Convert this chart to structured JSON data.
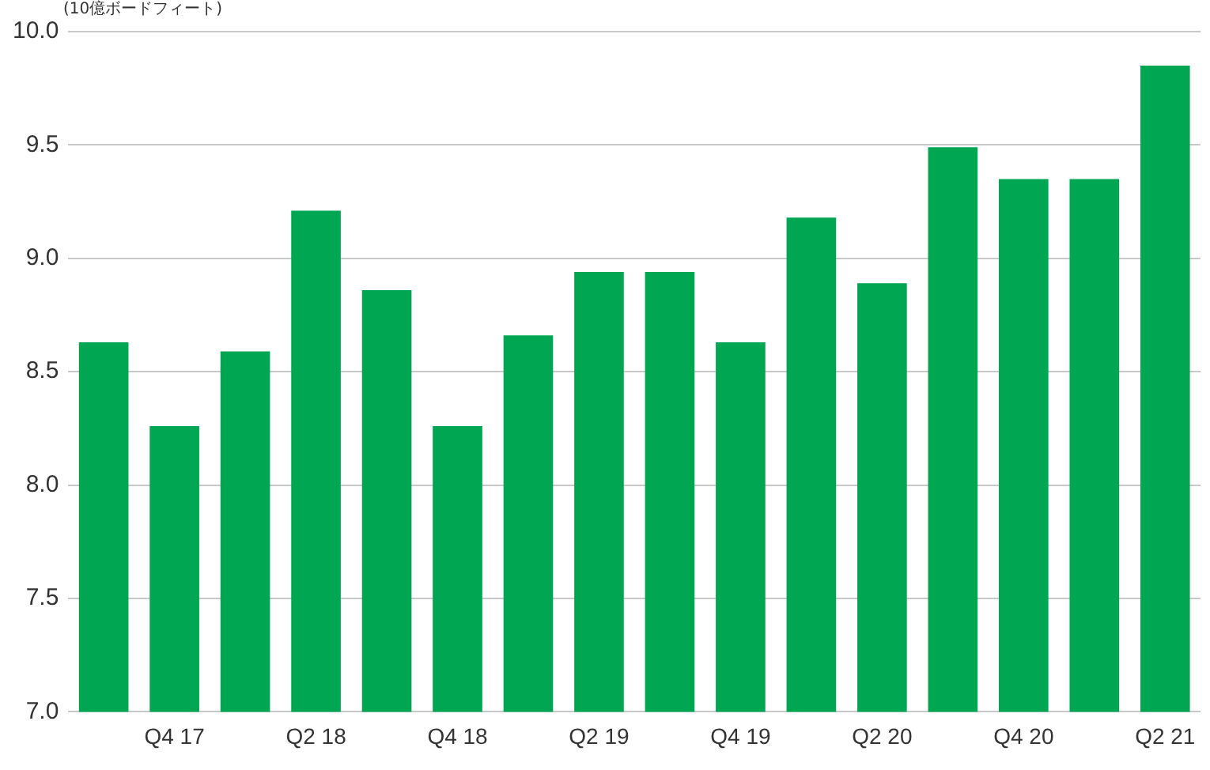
{
  "chart_data": {
    "type": "bar",
    "ylabel": "(10億ボードフィート)",
    "categories": [
      null,
      "Q4 17",
      null,
      "Q2 18",
      null,
      "Q4 18",
      null,
      "Q2 19",
      null,
      "Q4 19",
      null,
      "Q2 20",
      null,
      "Q4 20",
      null,
      "Q2 21"
    ],
    "values": [
      8.63,
      8.26,
      8.59,
      9.21,
      8.86,
      8.26,
      8.66,
      8.94,
      8.94,
      8.63,
      9.18,
      8.89,
      9.49,
      9.35,
      9.35,
      9.85
    ],
    "color": "#00a651",
    "ylim": [
      7,
      10
    ],
    "yticks": [
      {
        "value": 7,
        "label": "7.0"
      },
      {
        "value": 7.5,
        "label": "7.5"
      },
      {
        "value": 8,
        "label": "8.0"
      },
      {
        "value": 8.5,
        "label": "8.5"
      },
      {
        "value": 9,
        "label": "9.0"
      },
      {
        "value": 9.5,
        "label": "9.5"
      },
      {
        "value": 10,
        "label": "10.0"
      }
    ],
    "grid": "y"
  }
}
